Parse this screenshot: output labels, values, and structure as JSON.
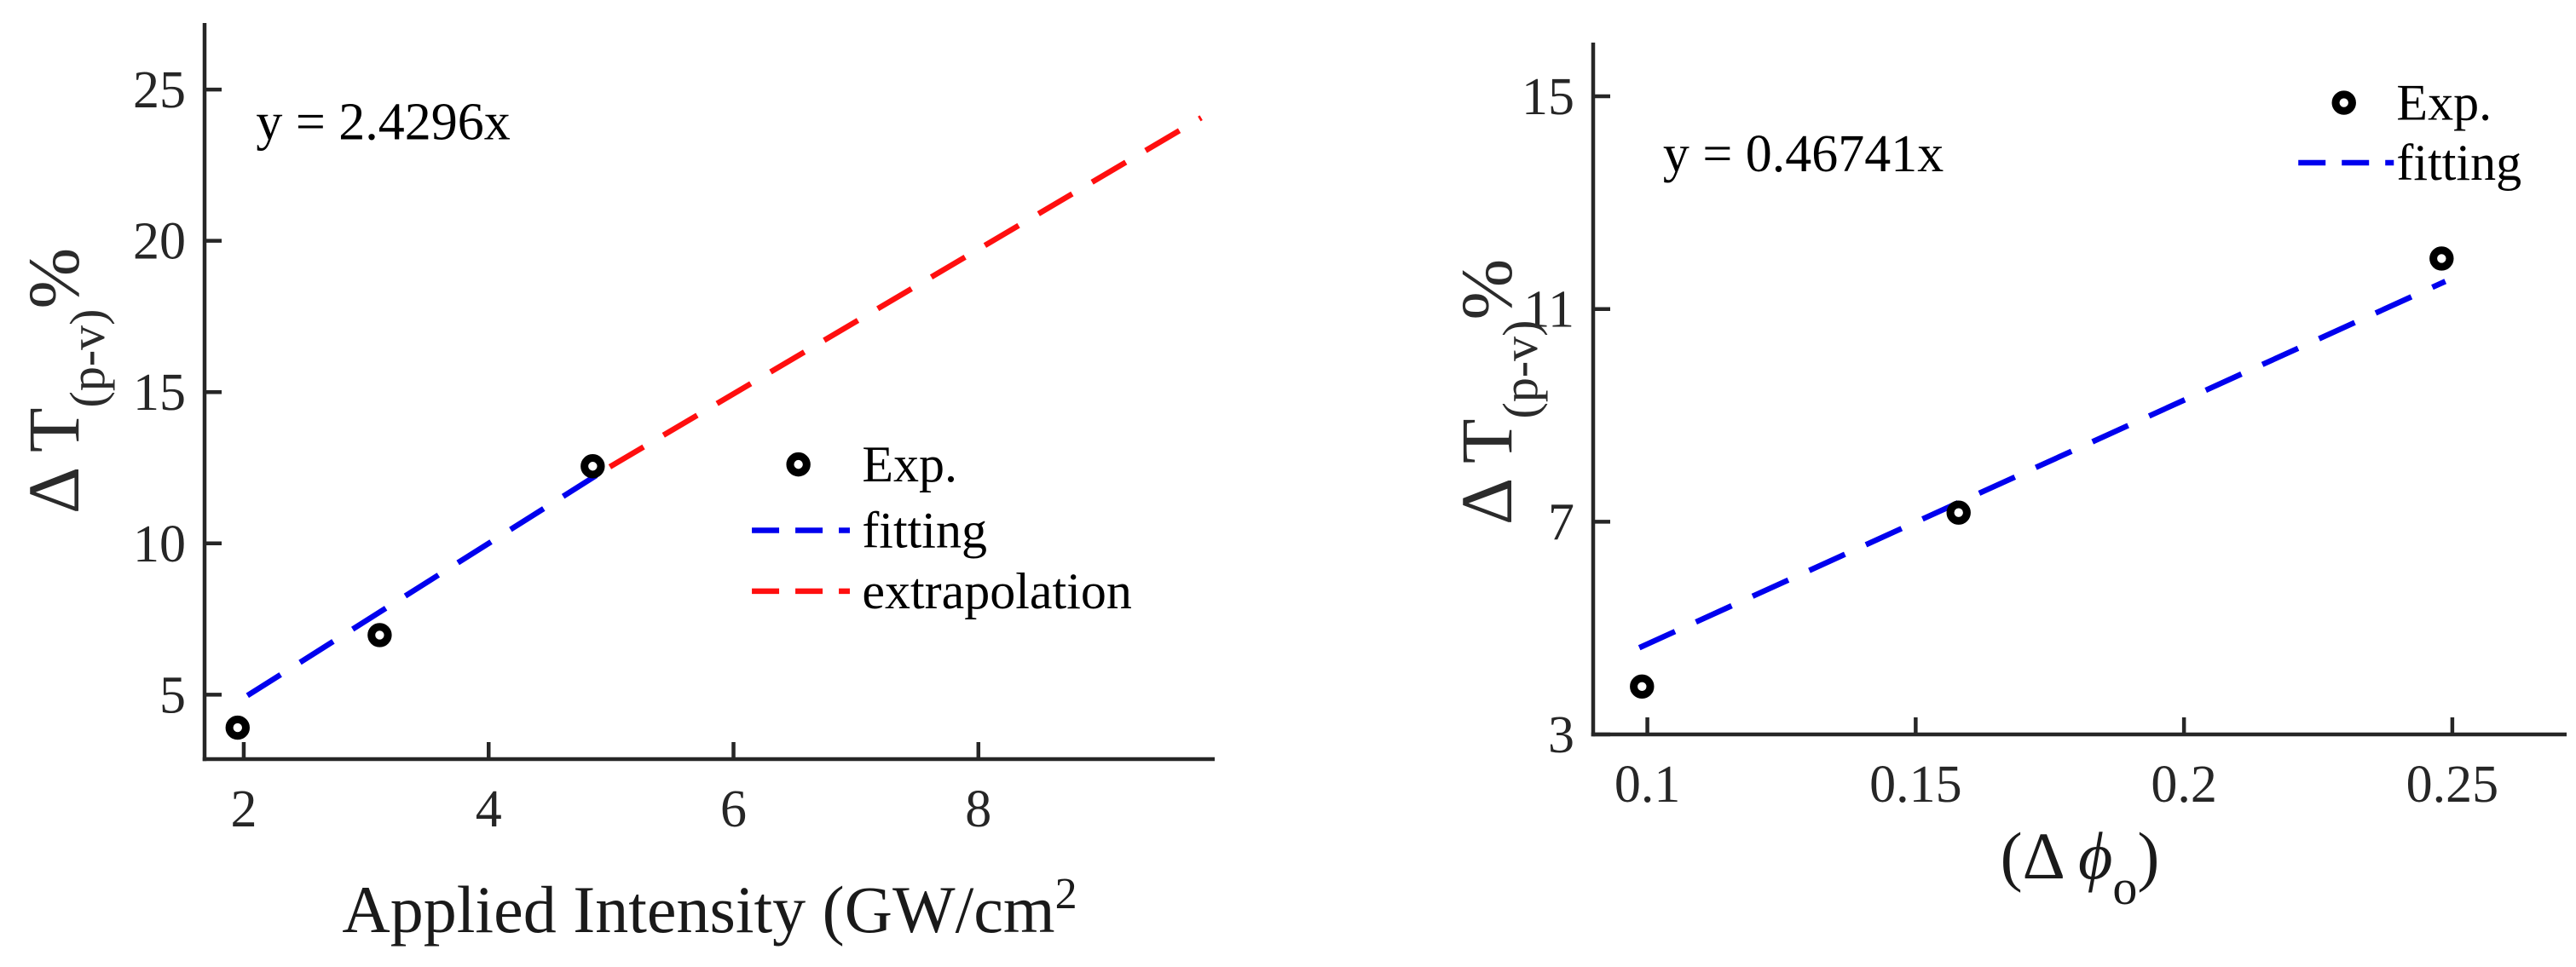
{
  "figure": {
    "background": "#ffffff",
    "axis_color": "#262626",
    "tick_label_color": "#262626",
    "text_color": "#1a1a1a",
    "marker_color": "#000000"
  },
  "chart_data": [
    {
      "id": "left",
      "type": "scatter",
      "title": "",
      "annotation": {
        "text": "y = 2.4296x",
        "x": 2.1,
        "y": 23.95
      },
      "xlabel_parts": [
        {
          "t": "Applied Intensity (GW/cm",
          "s": "n"
        },
        {
          "t": "2",
          "s": "sup"
        }
      ],
      "ylabel_parts": [
        {
          "t": "Δ T",
          "s": "n"
        },
        {
          "t": "(p-v)",
          "s": "sub"
        },
        {
          "t": "%",
          "s": "n"
        }
      ],
      "xlim": [
        1.68,
        9.93
      ],
      "ylim": [
        2.87,
        27.2
      ],
      "xticks": [
        2,
        4,
        6,
        8
      ],
      "xtick_labels": [
        "2",
        "4",
        "6",
        "8"
      ],
      "yticks": [
        5,
        10,
        15,
        20,
        25
      ],
      "ytick_labels": [
        "5",
        "10",
        "15",
        "20",
        "25"
      ],
      "grid": false,
      "points": {
        "name": "Exp.",
        "x": [
          1.95,
          3.11,
          4.85
        ],
        "y": [
          3.91,
          6.97,
          12.55
        ]
      },
      "lines": [
        {
          "name": "fitting",
          "color": "#0000ee",
          "x1": 2.03,
          "y1": 4.97,
          "x2": 4.99,
          "y2": 12.53
        },
        {
          "name": "extrapolation",
          "color": "#ff0f0f",
          "x1": 4.99,
          "y1": 12.53,
          "x2": 9.82,
          "y2": 24.07
        }
      ],
      "legend": {
        "position": "inside-right-middle",
        "boxed": false,
        "marker_x": 6.53,
        "dash_x1": 6.15,
        "dash_x2": 6.95,
        "text_x": 7.05,
        "items": [
          {
            "type": "circle",
            "color": "#000000",
            "label": "Exp.",
            "y": 12.61
          },
          {
            "type": "dash",
            "color": "#0000ee",
            "label": "fitting",
            "y": 10.43
          },
          {
            "type": "dash",
            "color": "#ff0f0f",
            "label": "extrapolation",
            "y": 8.42
          }
        ]
      }
    },
    {
      "id": "right",
      "type": "scatter",
      "title": "",
      "annotation": {
        "text": "y = 0.46741x",
        "x": 0.1029,
        "y": 13.93
      },
      "xlabel_parts": [
        {
          "t": "(Δ ",
          "s": "n"
        },
        {
          "t": "ϕ",
          "s": "i"
        },
        {
          "t": "o",
          "s": "sub"
        },
        {
          "t": ")",
          "s": "n"
        }
      ],
      "ylabel_parts": [
        {
          "t": "Δ T",
          "s": "n"
        },
        {
          "t": "(p-v)",
          "s": "sub"
        },
        {
          "t": "%",
          "s": "n"
        }
      ],
      "xlim": [
        0.0899,
        0.2713
      ],
      "ylim": [
        3.0,
        16.01
      ],
      "xticks": [
        0.1,
        0.15,
        0.2,
        0.25
      ],
      "xtick_labels": [
        "0.1",
        "0.15",
        "0.2",
        "0.25"
      ],
      "yticks": [
        3,
        7,
        11,
        15
      ],
      "ytick_labels": [
        "3",
        "7",
        "11",
        "15"
      ],
      "grid": false,
      "points": {
        "name": "Exp.",
        "x": [
          0.099,
          0.158,
          0.248
        ],
        "y": [
          3.9,
          7.17,
          11.95
        ]
      },
      "lines": [
        {
          "name": "fitting",
          "color": "#0000ee",
          "x1": 0.0985,
          "y1": 4.63,
          "x2": 0.2487,
          "y2": 11.52
        }
      ],
      "legend": {
        "position": "inside-top-right",
        "boxed": false,
        "marker_x": 0.2298,
        "dash_x1": 0.2213,
        "dash_x2": 0.2391,
        "text_x": 0.2396,
        "items": [
          {
            "type": "circle",
            "color": "#000000",
            "label": "Exp.",
            "y": 14.88
          },
          {
            "type": "dash",
            "color": "#0000ee",
            "label": "fitting",
            "y": 13.75
          }
        ]
      }
    }
  ]
}
